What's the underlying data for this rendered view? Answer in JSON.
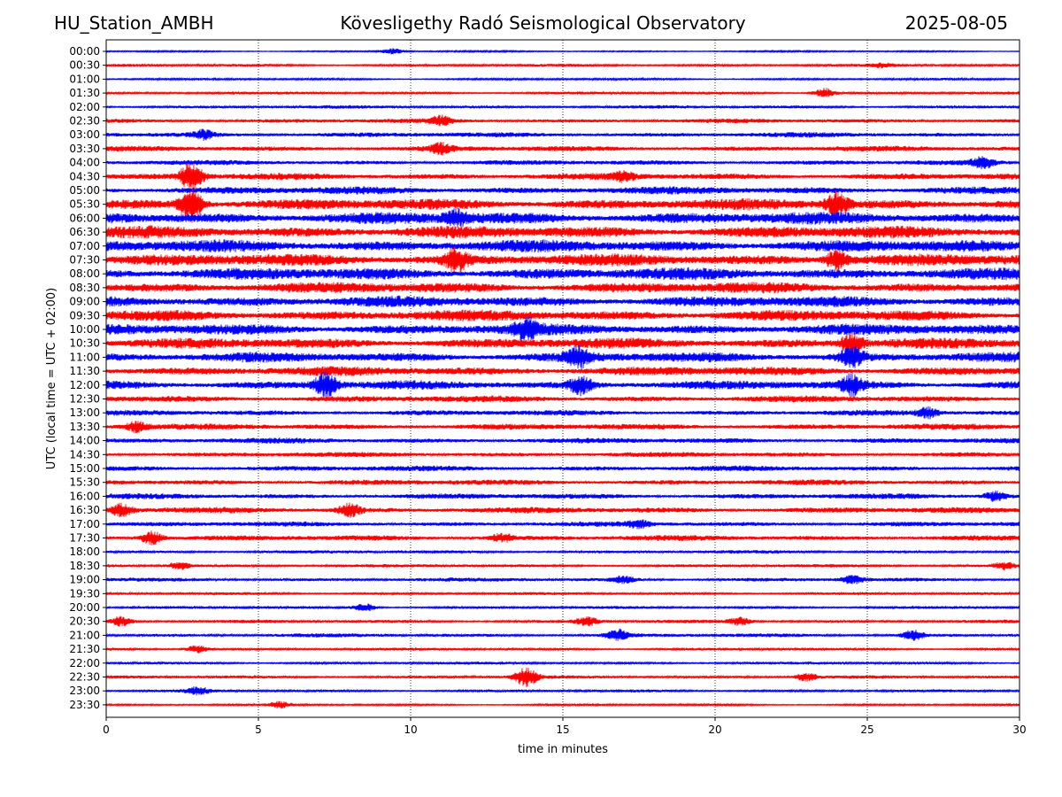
{
  "header": {
    "station": "HU_Station_AMBH",
    "observatory": "Kövesligethy Radó Seismological Observatory",
    "date": "2025-08-05"
  },
  "chart_data": {
    "type": "line",
    "title": "Kövesligethy Radó Seismological Observatory",
    "xlabel": "time in minutes",
    "ylabel": "UTC (local time = UTC + 02:00)",
    "xlim": [
      0,
      30
    ],
    "x_ticks": [
      0,
      5,
      10,
      15,
      20,
      25,
      30
    ],
    "grid_x": true,
    "grid_style": "dotted",
    "trace_colors": [
      "#0000ff",
      "#ff0000"
    ],
    "trace_labels": [
      "00:00",
      "00:30",
      "01:00",
      "01:30",
      "02:00",
      "02:30",
      "03:00",
      "03:30",
      "04:00",
      "04:30",
      "05:00",
      "05:30",
      "06:00",
      "06:30",
      "07:00",
      "07:30",
      "08:00",
      "08:30",
      "09:00",
      "09:30",
      "10:00",
      "10:30",
      "11:00",
      "11:30",
      "12:00",
      "12:30",
      "13:00",
      "13:30",
      "14:00",
      "14:30",
      "15:00",
      "15:30",
      "16:00",
      "16:30",
      "17:00",
      "17:30",
      "18:00",
      "18:30",
      "19:00",
      "19:30",
      "20:00",
      "20:30",
      "21:00",
      "21:30",
      "22:00",
      "22:30",
      "23:00",
      "23:30"
    ],
    "noise_level": [
      0.15,
      0.25,
      0.2,
      0.25,
      0.3,
      0.4,
      0.45,
      0.5,
      0.45,
      0.6,
      0.7,
      1.0,
      1.1,
      1.1,
      1.1,
      1.1,
      1.1,
      1.0,
      1.0,
      1.0,
      1.0,
      0.95,
      0.9,
      0.85,
      0.8,
      0.6,
      0.5,
      0.55,
      0.5,
      0.45,
      0.5,
      0.5,
      0.5,
      0.55,
      0.45,
      0.5,
      0.3,
      0.3,
      0.35,
      0.25,
      0.25,
      0.3,
      0.35,
      0.25,
      0.25,
      0.3,
      0.25,
      0.2
    ],
    "events": [
      {
        "trace": "00:00",
        "minute": 9.4,
        "amplitude": 0.6
      },
      {
        "trace": "00:30",
        "minute": 25.5,
        "amplitude": 0.4
      },
      {
        "trace": "01:30",
        "minute": 23.6,
        "amplitude": 1.0
      },
      {
        "trace": "02:30",
        "minute": 11.0,
        "amplitude": 0.9
      },
      {
        "trace": "03:00",
        "minute": 3.2,
        "amplitude": 0.9
      },
      {
        "trace": "03:30",
        "minute": 11.0,
        "amplitude": 1.0
      },
      {
        "trace": "04:00",
        "minute": 28.8,
        "amplitude": 1.0
      },
      {
        "trace": "04:30",
        "minute": 2.8,
        "amplitude": 3.0
      },
      {
        "trace": "04:30",
        "minute": 17.0,
        "amplitude": 0.8
      },
      {
        "trace": "05:30",
        "minute": 2.8,
        "amplitude": 3.5
      },
      {
        "trace": "05:30",
        "minute": 24.0,
        "amplitude": 2.5
      },
      {
        "trace": "06:00",
        "minute": 11.5,
        "amplitude": 1.5
      },
      {
        "trace": "07:30",
        "minute": 11.5,
        "amplitude": 2.0
      },
      {
        "trace": "07:30",
        "minute": 24.0,
        "amplitude": 2.0
      },
      {
        "trace": "10:00",
        "minute": 13.8,
        "amplitude": 1.8
      },
      {
        "trace": "10:30",
        "minute": 24.5,
        "amplitude": 2.0
      },
      {
        "trace": "11:00",
        "minute": 15.5,
        "amplitude": 2.0
      },
      {
        "trace": "11:00",
        "minute": 24.5,
        "amplitude": 2.0
      },
      {
        "trace": "12:00",
        "minute": 7.2,
        "amplitude": 2.5
      },
      {
        "trace": "12:00",
        "minute": 15.6,
        "amplitude": 1.8
      },
      {
        "trace": "12:00",
        "minute": 24.5,
        "amplitude": 1.8
      },
      {
        "trace": "13:00",
        "minute": 27.0,
        "amplitude": 1.0
      },
      {
        "trace": "13:30",
        "minute": 1.0,
        "amplitude": 1.0
      },
      {
        "trace": "16:00",
        "minute": 29.2,
        "amplitude": 1.0
      },
      {
        "trace": "16:30",
        "minute": 0.5,
        "amplitude": 1.2
      },
      {
        "trace": "16:30",
        "minute": 8.0,
        "amplitude": 1.3
      },
      {
        "trace": "17:00",
        "minute": 17.5,
        "amplitude": 0.7
      },
      {
        "trace": "17:30",
        "minute": 1.5,
        "amplitude": 1.5
      },
      {
        "trace": "17:30",
        "minute": 13.0,
        "amplitude": 0.8
      },
      {
        "trace": "18:30",
        "minute": 2.4,
        "amplitude": 0.8
      },
      {
        "trace": "18:30",
        "minute": 29.5,
        "amplitude": 0.8
      },
      {
        "trace": "19:00",
        "minute": 17.0,
        "amplitude": 0.7
      },
      {
        "trace": "19:00",
        "minute": 24.5,
        "amplitude": 0.8
      },
      {
        "trace": "20:00",
        "minute": 8.5,
        "amplitude": 0.8
      },
      {
        "trace": "20:30",
        "minute": 0.5,
        "amplitude": 1.0
      },
      {
        "trace": "20:30",
        "minute": 15.8,
        "amplitude": 0.9
      },
      {
        "trace": "20:30",
        "minute": 20.8,
        "amplitude": 0.8
      },
      {
        "trace": "21:00",
        "minute": 16.8,
        "amplitude": 1.2
      },
      {
        "trace": "21:00",
        "minute": 26.5,
        "amplitude": 1.0
      },
      {
        "trace": "21:30",
        "minute": 3.0,
        "amplitude": 0.8
      },
      {
        "trace": "22:30",
        "minute": 13.8,
        "amplitude": 2.0
      },
      {
        "trace": "22:30",
        "minute": 23.0,
        "amplitude": 0.8
      },
      {
        "trace": "23:00",
        "minute": 3.0,
        "amplitude": 0.8
      },
      {
        "trace": "23:30",
        "minute": 5.7,
        "amplitude": 0.6
      }
    ]
  }
}
